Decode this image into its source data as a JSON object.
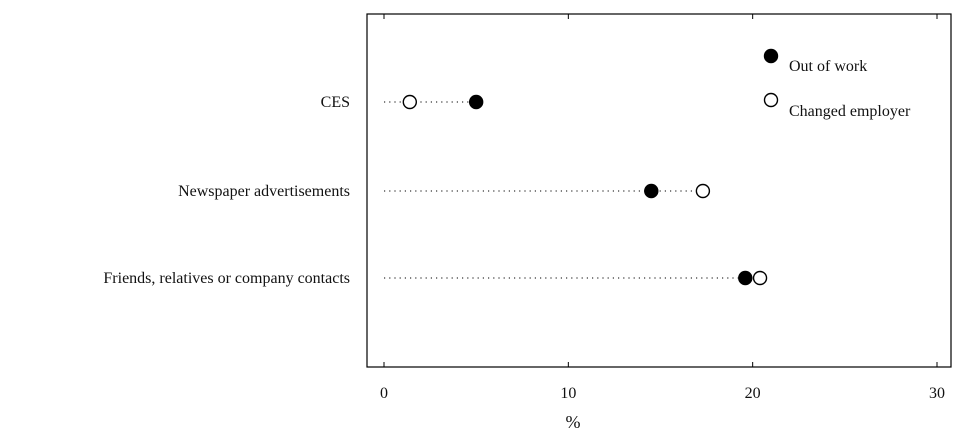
{
  "chart_data": {
    "type": "scatter",
    "subtype": "dot-plot",
    "title": "",
    "xlabel": "%",
    "ylabel": "",
    "xlim": [
      -1,
      31
    ],
    "x_ticks": [
      0,
      10,
      20,
      30
    ],
    "x_tick_labels": [
      "0",
      "10",
      "20",
      "30"
    ],
    "grid": false,
    "legend_position": "top-right",
    "categories": [
      "CES",
      "Newspaper advertisements",
      "Friends, relatives or company contacts"
    ],
    "series": [
      {
        "name": "Out of work",
        "marker": "filled-circle",
        "color": "#000000",
        "values": [
          5.0,
          14.5,
          19.6
        ]
      },
      {
        "name": "Changed employer",
        "marker": "open-circle",
        "color": "#000000",
        "values": [
          1.4,
          17.3,
          20.4
        ]
      }
    ]
  }
}
